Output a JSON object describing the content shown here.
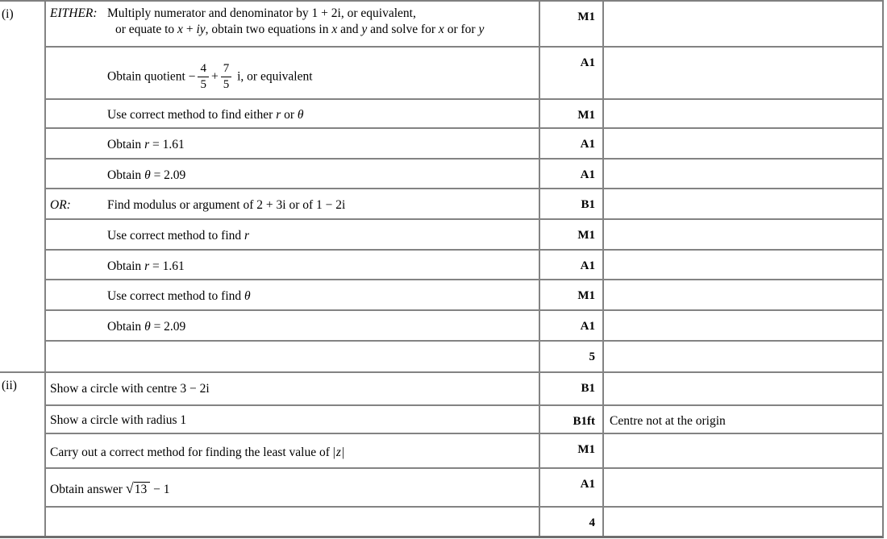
{
  "table": {
    "parts": [
      {
        "label": "(i)"
      },
      {
        "label": "(ii)"
      }
    ],
    "rows": [
      {
        "label": "EITHER:",
        "content": [
          {
            "t": "text",
            "v": "Multiply numerator and denominator by 1 + 2i, or equivalent,"
          },
          {
            "t": "br"
          },
          {
            "t": "text",
            "v": "or equate to "
          },
          {
            "t": "var",
            "v": "x"
          },
          {
            "t": "text",
            "v": " + "
          },
          {
            "t": "var",
            "v": "iy"
          },
          {
            "t": "text",
            "v": ", obtain two equations in "
          },
          {
            "t": "var",
            "v": "x"
          },
          {
            "t": "text",
            "v": " and "
          },
          {
            "t": "var",
            "v": "y"
          },
          {
            "t": "text",
            "v": " and solve for "
          },
          {
            "t": "var",
            "v": "x"
          },
          {
            "t": "text",
            "v": " or for "
          },
          {
            "t": "var",
            "v": "y"
          }
        ],
        "mark": "M1",
        "comment": ""
      },
      {
        "label": "",
        "content": [
          {
            "t": "text",
            "v": "Obtain quotient −"
          },
          {
            "t": "frac",
            "num": "4",
            "den": "5"
          },
          {
            "t": "text",
            "v": "+"
          },
          {
            "t": "frac",
            "num": "7",
            "den": "5"
          },
          {
            "t": "text",
            "v": " i, or equivalent"
          }
        ],
        "mark": "A1",
        "comment": ""
      },
      {
        "label": "",
        "content": [
          {
            "t": "text",
            "v": "Use correct method to find either "
          },
          {
            "t": "var",
            "v": "r"
          },
          {
            "t": "text",
            "v": " or "
          },
          {
            "t": "var",
            "v": "θ"
          }
        ],
        "mark": "M1",
        "comment": ""
      },
      {
        "label": "",
        "content": [
          {
            "t": "text",
            "v": "Obtain "
          },
          {
            "t": "var",
            "v": "r"
          },
          {
            "t": "text",
            "v": " = 1.61"
          }
        ],
        "mark": "A1",
        "comment": ""
      },
      {
        "label": "",
        "content": [
          {
            "t": "text",
            "v": "Obtain "
          },
          {
            "t": "var",
            "v": "θ"
          },
          {
            "t": "text",
            "v": " = 2.09"
          }
        ],
        "mark": "A1",
        "comment": ""
      },
      {
        "label": "OR:",
        "content": [
          {
            "t": "text",
            "v": "Find modulus or argument of 2 + 3i or of 1 − 2i"
          }
        ],
        "mark": "B1",
        "comment": ""
      },
      {
        "label": "",
        "content": [
          {
            "t": "text",
            "v": "Use correct method to find "
          },
          {
            "t": "var",
            "v": "r"
          }
        ],
        "mark": "M1",
        "comment": ""
      },
      {
        "label": "",
        "content": [
          {
            "t": "text",
            "v": "Obtain "
          },
          {
            "t": "var",
            "v": "r"
          },
          {
            "t": "text",
            "v": " = 1.61"
          }
        ],
        "mark": "A1",
        "comment": ""
      },
      {
        "label": "",
        "content": [
          {
            "t": "text",
            "v": "Use correct method to find "
          },
          {
            "t": "var",
            "v": "θ"
          }
        ],
        "mark": "M1",
        "comment": ""
      },
      {
        "label": "",
        "content": [
          {
            "t": "text",
            "v": "Obtain "
          },
          {
            "t": "var",
            "v": "θ"
          },
          {
            "t": "text",
            "v": " = 2.09"
          }
        ],
        "mark": "A1",
        "comment": ""
      },
      {
        "label": "",
        "content": [],
        "mark": "5",
        "comment": ""
      },
      {
        "label": "",
        "content": [
          {
            "t": "text",
            "v": "Show a circle with centre 3 − 2i"
          }
        ],
        "mark": "B1",
        "comment": ""
      },
      {
        "label": "",
        "content": [
          {
            "t": "text",
            "v": "Show a circle with radius 1"
          }
        ],
        "mark": "B1ft",
        "comment": "Centre not at the origin"
      },
      {
        "label": "",
        "content": [
          {
            "t": "text",
            "v": "Carry out a correct method for finding the least value of "
          },
          {
            "t": "abs",
            "v": "z"
          }
        ],
        "mark": "M1",
        "comment": ""
      },
      {
        "label": "",
        "content": [
          {
            "t": "text",
            "v": "Obtain answer "
          },
          {
            "t": "sqrt",
            "v": "13"
          },
          {
            "t": "text",
            "v": " − 1"
          }
        ],
        "mark": "A1",
        "comment": ""
      },
      {
        "label": "",
        "content": [],
        "mark": "4",
        "comment": ""
      }
    ]
  }
}
